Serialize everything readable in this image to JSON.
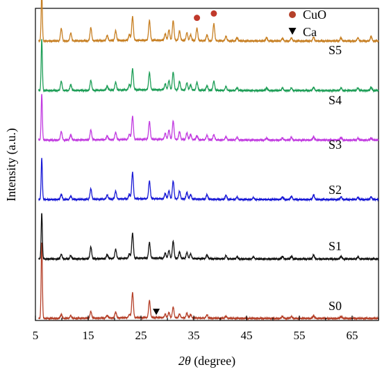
{
  "chart_data": {
    "type": "line",
    "title": "",
    "xlabel": "2θ (degree)",
    "ylabel": "Intensity (a.u.)",
    "xlim": [
      5,
      70
    ],
    "x_ticks": [
      "5",
      "15",
      "25",
      "35",
      "45",
      "55",
      "65"
    ],
    "x_tick_values": [
      5,
      15,
      25,
      35,
      45,
      55,
      65
    ],
    "y_ticks_shown": false,
    "grid": false,
    "legend_position": "top-right",
    "legend": [
      {
        "name": "CuO",
        "marker": "circle",
        "color": "#c0392b"
      },
      {
        "name": "Ca",
        "marker": "down-triangle",
        "color": "#000000"
      }
    ],
    "series": [
      {
        "name": "S0",
        "color": "#b5412a",
        "base": 0,
        "peaks": [
          [
            6.2,
            115
          ],
          [
            9.9,
            6
          ],
          [
            11.7,
            4
          ],
          [
            15.5,
            10
          ],
          [
            18.6,
            4
          ],
          [
            20.2,
            9
          ],
          [
            22.8,
            5
          ],
          [
            23.4,
            38
          ],
          [
            26.6,
            26
          ],
          [
            29.6,
            5
          ],
          [
            30.3,
            8
          ],
          [
            31.1,
            16
          ],
          [
            32.3,
            6
          ],
          [
            33.7,
            7
          ],
          [
            34.4,
            5
          ],
          [
            37.5,
            5
          ],
          [
            41.1,
            3
          ],
          [
            51.8,
            3
          ],
          [
            53.5,
            3
          ],
          [
            57.7,
            4
          ],
          [
            62.9,
            3
          ]
        ]
      },
      {
        "name": "S1",
        "color": "#111111",
        "base": 90,
        "peaks": [
          [
            6.2,
            70
          ],
          [
            9.9,
            7
          ],
          [
            11.7,
            5
          ],
          [
            15.5,
            18
          ],
          [
            18.6,
            6
          ],
          [
            20.2,
            14
          ],
          [
            22.8,
            7
          ],
          [
            23.4,
            38
          ],
          [
            26.6,
            24
          ],
          [
            29.6,
            8
          ],
          [
            30.3,
            12
          ],
          [
            31.1,
            26
          ],
          [
            32.3,
            10
          ],
          [
            33.7,
            9
          ],
          [
            34.4,
            7
          ],
          [
            37.5,
            6
          ],
          [
            41.1,
            5
          ],
          [
            43.2,
            3
          ],
          [
            46.3,
            3
          ],
          [
            51.8,
            4
          ],
          [
            53.5,
            4
          ],
          [
            57.7,
            6
          ],
          [
            62.9,
            4
          ],
          [
            66.1,
            3
          ]
        ]
      },
      {
        "name": "S2",
        "color": "#1a1ad6",
        "base": 180,
        "peaks": [
          [
            6.2,
            63
          ],
          [
            9.9,
            8
          ],
          [
            11.7,
            5
          ],
          [
            15.5,
            16
          ],
          [
            18.6,
            6
          ],
          [
            20.2,
            12
          ],
          [
            22.8,
            7
          ],
          [
            23.4,
            40
          ],
          [
            26.6,
            27
          ],
          [
            29.6,
            8
          ],
          [
            30.3,
            12
          ],
          [
            31.1,
            27
          ],
          [
            32.3,
            12
          ],
          [
            33.7,
            10
          ],
          [
            34.4,
            7
          ],
          [
            37.5,
            7
          ],
          [
            41.1,
            6
          ],
          [
            43.2,
            4
          ],
          [
            46.3,
            3
          ],
          [
            51.8,
            4
          ],
          [
            53.5,
            5
          ],
          [
            57.7,
            7
          ],
          [
            62.9,
            4
          ],
          [
            66.1,
            3
          ],
          [
            68.6,
            4
          ]
        ]
      },
      {
        "name": "S3",
        "color": "#c13be0",
        "base": 270,
        "peaks": [
          [
            6.2,
            70
          ],
          [
            9.9,
            13
          ],
          [
            11.7,
            8
          ],
          [
            15.5,
            15
          ],
          [
            18.6,
            6
          ],
          [
            20.2,
            11
          ],
          [
            22.8,
            8
          ],
          [
            23.4,
            35
          ],
          [
            26.6,
            27
          ],
          [
            29.6,
            9
          ],
          [
            30.3,
            14
          ],
          [
            31.1,
            28
          ],
          [
            32.3,
            12
          ],
          [
            33.7,
            10
          ],
          [
            34.4,
            8
          ],
          [
            35.6,
            6
          ],
          [
            37.5,
            7
          ],
          [
            38.8,
            8
          ],
          [
            41.1,
            5
          ],
          [
            43.2,
            4
          ],
          [
            48.8,
            3
          ],
          [
            51.8,
            3
          ],
          [
            53.5,
            4
          ],
          [
            57.7,
            5
          ],
          [
            62.9,
            4
          ],
          [
            66.1,
            3
          ],
          [
            68.6,
            3
          ]
        ]
      },
      {
        "name": "S4",
        "color": "#1e9e57",
        "base": 345,
        "peaks": [
          [
            6.2,
            78
          ],
          [
            9.9,
            14
          ],
          [
            11.7,
            9
          ],
          [
            15.5,
            15
          ],
          [
            18.6,
            6
          ],
          [
            20.2,
            12
          ],
          [
            22.8,
            8
          ],
          [
            23.4,
            32
          ],
          [
            26.6,
            26
          ],
          [
            29.6,
            9
          ],
          [
            30.3,
            14
          ],
          [
            31.1,
            27
          ],
          [
            32.3,
            13
          ],
          [
            33.7,
            11
          ],
          [
            34.4,
            8
          ],
          [
            35.6,
            12
          ],
          [
            37.5,
            7
          ],
          [
            38.8,
            14
          ],
          [
            41.1,
            6
          ],
          [
            43.2,
            4
          ],
          [
            48.8,
            4
          ],
          [
            51.8,
            4
          ],
          [
            53.5,
            4
          ],
          [
            57.7,
            5
          ],
          [
            62.9,
            4
          ],
          [
            66.1,
            4
          ],
          [
            68.6,
            5
          ]
        ]
      },
      {
        "name": "S5",
        "color": "#c77f22",
        "base": 420,
        "peaks": [
          [
            6.2,
            75
          ],
          [
            9.9,
            19
          ],
          [
            11.7,
            12
          ],
          [
            15.5,
            20
          ],
          [
            18.6,
            8
          ],
          [
            20.2,
            15
          ],
          [
            22.8,
            9
          ],
          [
            23.4,
            36
          ],
          [
            26.6,
            30
          ],
          [
            29.6,
            10
          ],
          [
            30.3,
            16
          ],
          [
            31.1,
            30
          ],
          [
            32.3,
            14
          ],
          [
            33.7,
            12
          ],
          [
            34.4,
            9
          ],
          [
            35.6,
            19
          ],
          [
            37.5,
            9
          ],
          [
            38.8,
            26
          ],
          [
            41.1,
            7
          ],
          [
            43.2,
            5
          ],
          [
            48.8,
            5
          ],
          [
            51.8,
            4
          ],
          [
            53.5,
            5
          ],
          [
            57.7,
            6
          ],
          [
            62.9,
            5
          ],
          [
            66.1,
            5
          ],
          [
            68.6,
            7
          ]
        ]
      }
    ],
    "annotations": [
      {
        "type": "circle",
        "label": "CuO",
        "x": 35.6,
        "series": "S5",
        "color": "#c0392b"
      },
      {
        "type": "circle",
        "label": "CuO",
        "x": 38.8,
        "series": "S5",
        "color": "#c0392b"
      },
      {
        "type": "down-triangle",
        "label": "Ca",
        "x": 27.9,
        "series": "S0",
        "color": "#000000"
      }
    ]
  }
}
